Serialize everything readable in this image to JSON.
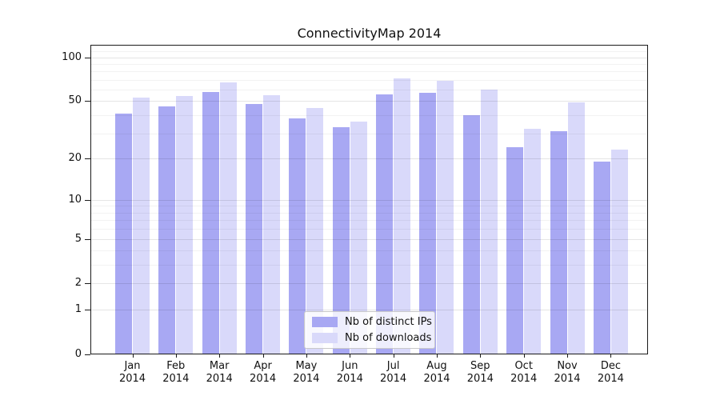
{
  "chart_data": {
    "type": "bar",
    "title": "ConnectivityMap 2014",
    "categories": [
      "Jan",
      "Feb",
      "Mar",
      "Apr",
      "May",
      "Jun",
      "Jul",
      "Aug",
      "Sep",
      "Oct",
      "Nov",
      "Dec"
    ],
    "category_year": "2014",
    "series": [
      {
        "name": "Nb of distinct IPs",
        "color": "#a8a8f3",
        "values": [
          41,
          46,
          58,
          48,
          38,
          33,
          56,
          57,
          40,
          24,
          31,
          19
        ]
      },
      {
        "name": "Nb of downloads",
        "color": "#d9d9fa",
        "values": [
          53,
          54,
          67,
          55,
          45,
          36,
          72,
          69,
          60,
          32,
          49,
          23
        ]
      }
    ],
    "xlabel": "",
    "ylabel": "",
    "yscale": "log1p",
    "ylim": [
      0,
      120
    ],
    "y_major_ticks": [
      0,
      1,
      2,
      5,
      10,
      20,
      50,
      100
    ],
    "y_minor_gridlines": [
      3,
      4,
      6,
      7,
      8,
      9,
      30,
      40,
      60,
      70,
      80,
      90,
      110
    ],
    "grid": "horizontal, drawn over bars",
    "legend_position": "lower center inside plot"
  },
  "colors": {
    "background": "#ffffff",
    "axis": "#1a1a1a",
    "text": "#111111",
    "grid_major": "rgba(0,0,0,0.10)",
    "grid_minor": "rgba(0,0,0,0.05)",
    "legend_border": "#c9c9c9"
  }
}
